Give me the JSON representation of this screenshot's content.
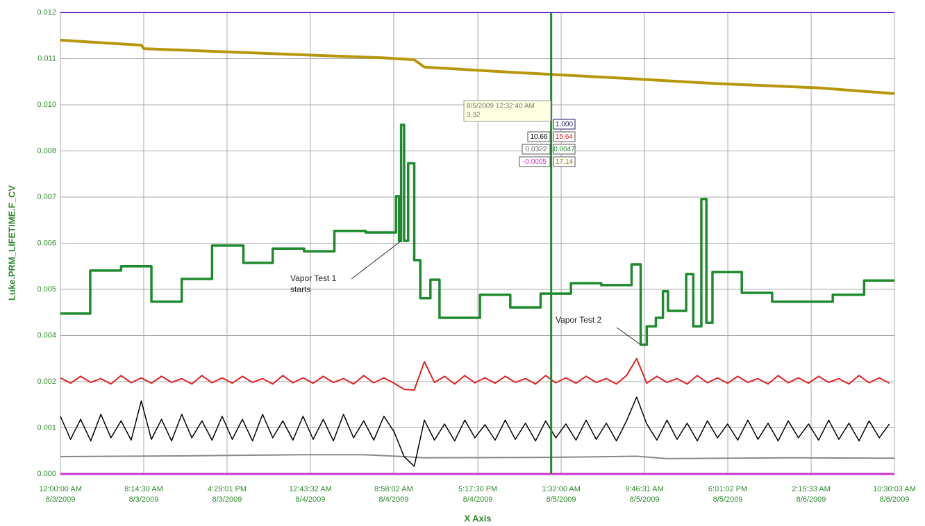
{
  "chart_data": {
    "type": "line",
    "y_label": "Luke.PRM_LIFETIME.F_CV",
    "x_label": "X Axis",
    "grid": true,
    "ylim": [
      0,
      0.012
    ],
    "yticks": [
      {
        "value": 0,
        "label": "0.000"
      },
      {
        "value": 0.0012,
        "label": "0.001"
      },
      {
        "value": 0.0024,
        "label": "0.002"
      },
      {
        "value": 0.0036,
        "label": "0.004"
      },
      {
        "value": 0.0048,
        "label": "0.005"
      },
      {
        "value": 0.006,
        "label": "0.006"
      },
      {
        "value": 0.0072,
        "label": "0.007"
      },
      {
        "value": 0.0084,
        "label": "0.008"
      },
      {
        "value": 0.0096,
        "label": "0.010"
      },
      {
        "value": 0.0108,
        "label": "0.011"
      },
      {
        "value": 0.012,
        "label": "0.012"
      }
    ],
    "xlim": [
      "2009-08-03T00:00:00",
      "2009-08-06T10:30:03"
    ],
    "xticks": [
      {
        "value": "2009-08-03T00:00:00",
        "label": [
          "12:00:00 AM",
          "8/3/2009"
        ]
      },
      {
        "value": "2009-08-03T08:14:30",
        "label": [
          "8:14:30 AM",
          "8/3/2009"
        ]
      },
      {
        "value": "2009-08-03T16:29:01",
        "label": [
          "4:29:01 PM",
          "8/3/2009"
        ]
      },
      {
        "value": "2009-08-04T00:43:32",
        "label": [
          "12:43:32 AM",
          "8/4/2009"
        ]
      },
      {
        "value": "2009-08-04T08:58:02",
        "label": [
          "8:58:02 AM",
          "8/4/2009"
        ]
      },
      {
        "value": "2009-08-04T17:17:30",
        "label": [
          "5:17:30 PM",
          "8/4/2009"
        ]
      },
      {
        "value": "2009-08-05T01:32:00",
        "label": [
          "1:32:00 AM",
          "8/5/2009"
        ]
      },
      {
        "value": "2009-08-05T09:46:31",
        "label": [
          "9:46:31 AM",
          "8/5/2009"
        ]
      },
      {
        "value": "2009-08-05T18:01:02",
        "label": [
          "6:01:02 PM",
          "8/5/2009"
        ]
      },
      {
        "value": "2009-08-06T02:15:33",
        "label": [
          "2:15:33 AM",
          "8/6/2009"
        ]
      },
      {
        "value": "2009-08-06T10:30:03",
        "label": [
          "10:30:03 AM",
          "8/6/2009"
        ]
      }
    ],
    "x": [
      "2009-08-03T00:00:00",
      "2009-08-03T01:00:00",
      "2009-08-03T02:00:00",
      "2009-08-03T03:00:00",
      "2009-08-03T04:00:00",
      "2009-08-03T05:00:00",
      "2009-08-03T06:00:00",
      "2009-08-03T07:00:00",
      "2009-08-03T08:00:00",
      "2009-08-03T09:00:00",
      "2009-08-03T10:00:00",
      "2009-08-03T11:00:00",
      "2009-08-03T12:00:00",
      "2009-08-03T13:00:00",
      "2009-08-03T14:00:00",
      "2009-08-03T15:00:00",
      "2009-08-03T16:00:00",
      "2009-08-03T17:00:00",
      "2009-08-03T18:00:00",
      "2009-08-03T19:00:00",
      "2009-08-03T20:00:00",
      "2009-08-03T21:00:00",
      "2009-08-03T22:00:00",
      "2009-08-03T23:00:00",
      "2009-08-04T00:00:00",
      "2009-08-04T01:00:00",
      "2009-08-04T02:00:00",
      "2009-08-04T03:00:00",
      "2009-08-04T04:00:00",
      "2009-08-04T05:00:00",
      "2009-08-04T06:00:00",
      "2009-08-04T07:00:00",
      "2009-08-04T08:00:00",
      "2009-08-04T09:00:00",
      "2009-08-04T10:00:00",
      "2009-08-04T11:00:00",
      "2009-08-04T12:00:00",
      "2009-08-04T13:00:00",
      "2009-08-04T14:00:00",
      "2009-08-04T15:00:00",
      "2009-08-04T16:00:00",
      "2009-08-04T17:00:00",
      "2009-08-04T18:00:00",
      "2009-08-04T19:00:00",
      "2009-08-04T20:00:00",
      "2009-08-04T21:00:00",
      "2009-08-04T22:00:00",
      "2009-08-04T23:00:00",
      "2009-08-05T00:00:00",
      "2009-08-05T01:00:00",
      "2009-08-05T02:00:00",
      "2009-08-05T03:00:00",
      "2009-08-05T04:00:00",
      "2009-08-05T05:00:00",
      "2009-08-05T06:00:00",
      "2009-08-05T07:00:00",
      "2009-08-05T08:00:00",
      "2009-08-05T09:00:00",
      "2009-08-05T10:00:00",
      "2009-08-05T11:00:00",
      "2009-08-05T12:00:00",
      "2009-08-05T13:00:00",
      "2009-08-05T14:00:00",
      "2009-08-05T15:00:00",
      "2009-08-05T16:00:00",
      "2009-08-05T17:00:00",
      "2009-08-05T18:00:00",
      "2009-08-05T19:00:00",
      "2009-08-05T20:00:00",
      "2009-08-05T21:00:00",
      "2009-08-05T22:00:00",
      "2009-08-05T23:00:00",
      "2009-08-06T00:00:00",
      "2009-08-06T01:00:00",
      "2009-08-06T02:00:00",
      "2009-08-06T03:00:00",
      "2009-08-06T04:00:00",
      "2009-08-06T05:00:00",
      "2009-08-06T06:00:00",
      "2009-08-06T07:00:00",
      "2009-08-06T08:00:00",
      "2009-08-06T09:00:00",
      "2009-08-06T10:00:00"
    ],
    "series": [
      {
        "color": "#cc33cc",
        "width": 3,
        "x": [
          "2009-08-03T00:00:00",
          "2009-08-06T10:30:03"
        ],
        "values": [
          0,
          0
        ]
      },
      {
        "color": "#6633cc",
        "width": 2,
        "x": [
          "2009-08-03T00:00:00",
          "2009-08-06T10:30:03"
        ],
        "values": [
          0.012,
          0.012
        ]
      },
      {
        "color": "#888888",
        "width": 2,
        "x": [
          "2009-08-03T00:00:00",
          "2009-08-03T12:00:00",
          "2009-08-04T00:00:00",
          "2009-08-04T06:00:00",
          "2009-08-04T10:00:00",
          "2009-08-04T12:00:00",
          "2009-08-05T00:00:00",
          "2009-08-05T09:00:00",
          "2009-08-05T12:00:00",
          "2009-08-06T00:00:00",
          "2009-08-06T10:30:03"
        ],
        "values": [
          0.00045,
          0.00047,
          0.0005,
          0.0005,
          0.00045,
          0.00042,
          0.00043,
          0.00046,
          0.0004,
          0.00042,
          0.00041
        ]
      },
      {
        "color": "#000000",
        "width": 1.5,
        "values": [
          0.0015,
          0.0009,
          0.00142,
          0.00086,
          0.00155,
          0.00094,
          0.00138,
          0.00088,
          0.0019,
          0.0009,
          0.00142,
          0.00086,
          0.00155,
          0.00094,
          0.00138,
          0.00088,
          0.0015,
          0.0009,
          0.00142,
          0.00086,
          0.00155,
          0.00094,
          0.00138,
          0.00088,
          0.0015,
          0.0009,
          0.00142,
          0.00086,
          0.00155,
          0.00094,
          0.00138,
          0.00088,
          0.0015,
          0.0011,
          0.00045,
          0.0002,
          0.0014,
          0.00088,
          0.0013,
          0.00086,
          0.0014,
          0.00094,
          0.00128,
          0.00088,
          0.0014,
          0.0009,
          0.00132,
          0.00086,
          0.00138,
          0.00094,
          0.0013,
          0.00088,
          0.0014,
          0.0009,
          0.00132,
          0.00086,
          0.00138,
          0.002,
          0.0013,
          0.00088,
          0.0014,
          0.0009,
          0.00132,
          0.00086,
          0.00138,
          0.00094,
          0.0013,
          0.00088,
          0.0014,
          0.0009,
          0.00132,
          0.00086,
          0.00138,
          0.00094,
          0.0013,
          0.00088,
          0.0014,
          0.0009,
          0.00132,
          0.00086,
          0.00138,
          0.00094,
          0.0013
        ]
      },
      {
        "color": "#e02020",
        "width": 2,
        "values": [
          0.0025,
          0.00236,
          0.00254,
          0.00238,
          0.00248,
          0.00234,
          0.00256,
          0.00237,
          0.0025,
          0.00236,
          0.00254,
          0.00238,
          0.00248,
          0.00234,
          0.00256,
          0.00237,
          0.0025,
          0.00236,
          0.00254,
          0.00238,
          0.00248,
          0.00234,
          0.00256,
          0.00237,
          0.0025,
          0.00236,
          0.00254,
          0.00238,
          0.00248,
          0.00234,
          0.00256,
          0.00237,
          0.0025,
          0.00236,
          0.0022,
          0.00218,
          0.00292,
          0.00238,
          0.00254,
          0.00234,
          0.00256,
          0.00237,
          0.0025,
          0.00236,
          0.00254,
          0.00238,
          0.00248,
          0.00234,
          0.00256,
          0.00237,
          0.0025,
          0.00236,
          0.00254,
          0.00238,
          0.00248,
          0.00234,
          0.00256,
          0.003,
          0.00236,
          0.00254,
          0.00238,
          0.00248,
          0.00234,
          0.00256,
          0.00237,
          0.0025,
          0.00236,
          0.00254,
          0.00238,
          0.00248,
          0.00234,
          0.00256,
          0.00237,
          0.0025,
          0.00236,
          0.00254,
          0.00238,
          0.00248,
          0.00234,
          0.00256,
          0.00237,
          0.0025,
          0.00236
        ]
      },
      {
        "color": "#b8960c",
        "width": 4,
        "x": [
          "2009-08-03T00:00:00",
          "2009-08-03T08:00:00",
          "2009-08-03T08:15:00",
          "2009-08-03T16:00:00",
          "2009-08-04T00:00:00",
          "2009-08-04T08:00:00",
          "2009-08-04T11:00:00",
          "2009-08-04T12:00:00",
          "2009-08-04T21:00:00",
          "2009-08-05T07:00:00",
          "2009-08-05T17:00:00",
          "2009-08-06T03:00:00",
          "2009-08-06T10:30:03"
        ],
        "values": [
          0.01128,
          0.01115,
          0.01106,
          0.01098,
          0.0109,
          0.01082,
          0.01077,
          0.01058,
          0.01044,
          0.0103,
          0.01015,
          0.01004,
          0.00989
        ]
      },
      {
        "color": "#1e8a2e",
        "width": 3.5,
        "x": [
          "2009-08-03T00:00:00",
          "2009-08-03T02:57:00",
          "2009-08-03T02:57:00",
          "2009-08-03T06:00:00",
          "2009-08-03T06:00:00",
          "2009-08-03T09:00:00",
          "2009-08-03T09:00:00",
          "2009-08-03T12:00:00",
          "2009-08-03T12:00:00",
          "2009-08-03T15:00:00",
          "2009-08-03T15:00:00",
          "2009-08-03T18:06:00",
          "2009-08-03T18:06:00",
          "2009-08-03T21:00:00",
          "2009-08-03T21:00:00",
          "2009-08-04T00:06:00",
          "2009-08-04T00:06:00",
          "2009-08-04T03:06:00",
          "2009-08-04T03:06:00",
          "2009-08-04T06:12:00",
          "2009-08-04T06:12:00",
          "2009-08-04T09:12:00",
          "2009-08-04T09:12:00",
          "2009-08-04T09:30:00",
          "2009-08-04T09:30:00",
          "2009-08-04T09:42:00",
          "2009-08-04T09:42:00",
          "2009-08-04T10:00:00",
          "2009-08-04T10:00:00",
          "2009-08-04T10:24:00",
          "2009-08-04T10:24:00",
          "2009-08-04T11:00:00",
          "2009-08-04T11:00:00",
          "2009-08-04T11:36:00",
          "2009-08-04T11:36:00",
          "2009-08-04T12:36:00",
          "2009-08-04T12:36:00",
          "2009-08-04T13:30:00",
          "2009-08-04T13:30:00",
          "2009-08-04T17:30:00",
          "2009-08-04T17:30:00",
          "2009-08-04T20:30:00",
          "2009-08-04T20:30:00",
          "2009-08-04T23:30:00",
          "2009-08-04T23:30:00",
          "2009-08-05T02:30:00",
          "2009-08-05T02:30:00",
          "2009-08-05T05:30:00",
          "2009-08-05T05:30:00",
          "2009-08-05T08:30:00",
          "2009-08-05T08:30:00",
          "2009-08-05T09:24:00",
          "2009-08-05T09:24:00",
          "2009-08-05T10:00:00",
          "2009-08-05T10:00:00",
          "2009-08-05T10:54:00",
          "2009-08-05T10:54:00",
          "2009-08-05T11:36:00",
          "2009-08-05T11:36:00",
          "2009-08-05T12:06:00",
          "2009-08-05T12:06:00",
          "2009-08-05T13:54:00",
          "2009-08-05T13:54:00",
          "2009-08-05T14:36:00",
          "2009-08-05T14:36:00",
          "2009-08-05T15:24:00",
          "2009-08-05T15:24:00",
          "2009-08-05T15:54:00",
          "2009-08-05T15:54:00",
          "2009-08-05T16:30:00",
          "2009-08-05T16:30:00",
          "2009-08-05T19:24:00",
          "2009-08-05T19:24:00",
          "2009-08-05T22:24:00",
          "2009-08-05T22:24:00",
          "2009-08-06T04:24:00",
          "2009-08-06T04:24:00",
          "2009-08-06T07:30:00",
          "2009-08-06T07:30:00",
          "2009-08-06T10:30:03"
        ],
        "values": [
          0.00417,
          0.00417,
          0.00529,
          0.00529,
          0.0054,
          0.0054,
          0.00448,
          0.00448,
          0.00507,
          0.00507,
          0.00594,
          0.00594,
          0.00549,
          0.00549,
          0.00586,
          0.00586,
          0.00579,
          0.00579,
          0.00632,
          0.00632,
          0.00628,
          0.00628,
          0.00722,
          0.00722,
          0.00606,
          0.00606,
          0.00908,
          0.00908,
          0.00606,
          0.00606,
          0.00808,
          0.00808,
          0.00556,
          0.00556,
          0.00457,
          0.00457,
          0.00505,
          0.00505,
          0.00406,
          0.00406,
          0.00466,
          0.00466,
          0.00433,
          0.00433,
          0.00469,
          0.00469,
          0.00496,
          0.00496,
          0.00491,
          0.00491,
          0.00545,
          0.00545,
          0.00336,
          0.00336,
          0.00384,
          0.00384,
          0.00406,
          0.00406,
          0.00475,
          0.00475,
          0.00424,
          0.00424,
          0.0052,
          0.0052,
          0.00384,
          0.00384,
          0.00715,
          0.00715,
          0.00393,
          0.00393,
          0.00525,
          0.00525,
          0.00471,
          0.00471,
          0.00448,
          0.00448,
          0.00466,
          0.00466,
          0.00503,
          0.00503
        ]
      }
    ],
    "annotations": [
      {
        "text": [
          "Vapor Test 1",
          "starts"
        ],
        "x": "2009-08-04T09:42:00",
        "y": 0.00606
      },
      {
        "text": [
          "Vapor Test 2"
        ],
        "x": "2009-08-05T09:24:00",
        "y": 0.00336
      }
    ],
    "cursor": {
      "x": "2009-08-05T00:32:40",
      "color": "#1e8a2e",
      "label": [
        "8/5/2009 12:32:40 AM",
        "3.32"
      ],
      "readouts": [
        {
          "text": "1.000",
          "color": "#1a1a66"
        },
        {
          "text": "10.66",
          "color": "#000000"
        },
        {
          "text": "15.64",
          "color": "#e02020"
        },
        {
          "text": "0.0322",
          "color": "#666666"
        },
        {
          "text": "0.0047",
          "color": "#1e8a2e"
        },
        {
          "text": "-0.0005",
          "color": "#cc33cc"
        },
        {
          "text": "17.14",
          "color": "#8a7a10"
        }
      ]
    }
  }
}
